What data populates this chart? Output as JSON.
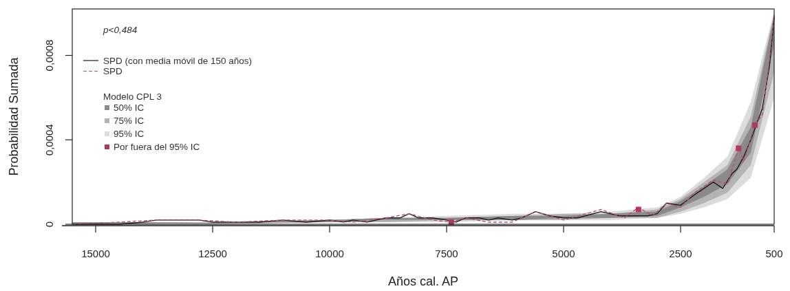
{
  "chart_data": {
    "type": "line",
    "xlabel": "Años cal. AP",
    "ylabel": "Probabilidad Sumada",
    "legend_title": "Modelo CPL 3",
    "legend": "top left",
    "annotations": [
      "p<0,484"
    ],
    "xlim": [
      15500,
      500
    ],
    "xticks": [
      15000,
      12500,
      10000,
      7500,
      5000,
      2500,
      500
    ],
    "ylim": [
      0,
      0.00102
    ],
    "yticks": [
      0,
      {
        "value": 0.0004,
        "label": "0,0004"
      },
      {
        "value": 0.0008,
        "label": "0,0008"
      }
    ],
    "series": [
      {
        "name": "SPD (con media móvil de 150 años)",
        "line_style": "solid",
        "color": "#1a1a1a",
        "x": [
          15500,
          15000,
          14500,
          14000,
          13700,
          13200,
          12800,
          12500,
          12000,
          11500,
          11000,
          10500,
          10000,
          9700,
          9500,
          9200,
          8800,
          8500,
          8300,
          8100,
          7800,
          7500,
          7300,
          7100,
          6800,
          6600,
          6400,
          6100,
          5900,
          5600,
          5300,
          5000,
          4700,
          4200,
          3800,
          3500,
          3200,
          3000,
          2800,
          2500,
          2200,
          1800,
          1600,
          1400,
          1300,
          1150,
          1000,
          900,
          750,
          600,
          500
        ],
        "values": [
          0,
          0,
          0,
          1e-05,
          2e-05,
          2e-05,
          2e-05,
          1e-05,
          1e-05,
          1e-05,
          2e-05,
          1e-05,
          2e-05,
          1e-05,
          2e-05,
          1e-05,
          3e-05,
          3e-05,
          5e-05,
          3e-05,
          3e-05,
          2e-05,
          1e-05,
          3e-05,
          3e-05,
          2e-05,
          3e-05,
          2e-05,
          3e-05,
          6e-05,
          4e-05,
          3e-05,
          3e-05,
          6e-05,
          4e-05,
          4e-05,
          4e-05,
          5e-05,
          0.0001,
          9e-05,
          0.00014,
          0.0002,
          0.00017,
          0.00024,
          0.00026,
          0.00032,
          0.0004,
          0.00046,
          0.00055,
          0.00075,
          0.00098
        ]
      },
      {
        "name": "SPD",
        "line_style": "dashed",
        "color": "#c0506a",
        "x": [
          15500,
          14500,
          13700,
          12800,
          12000,
          11000,
          10000,
          9500,
          8800,
          8300,
          7800,
          7400,
          7100,
          6600,
          6100,
          5600,
          5000,
          4200,
          3700,
          3400,
          3100,
          2800,
          2500,
          2200,
          1800,
          1500,
          1260,
          1150,
          910,
          750,
          600,
          500
        ],
        "values": [
          0,
          1e-05,
          2e-05,
          2e-05,
          1e-05,
          2e-05,
          2e-05,
          1e-05,
          3e-05,
          5e-05,
          2e-05,
          1e-05,
          3e-05,
          1e-05,
          1e-05,
          6e-05,
          2e-05,
          7e-05,
          3e-05,
          8e-05,
          4e-05,
          0.0001,
          8e-05,
          0.00015,
          0.00021,
          0.00019,
          0.00036,
          0.0003,
          0.00047,
          0.00052,
          0.00078,
          0.00099
        ]
      },
      {
        "name": "50% IC",
        "color": "#8a8a8a",
        "x": [
          15500,
          12500,
          10000,
          8800,
          7500,
          6000,
          5000,
          4000,
          3000,
          2500,
          2000,
          1500,
          1000,
          500
        ],
        "values": [
          null,
          null,
          null,
          null,
          null,
          null,
          null,
          null,
          null,
          null,
          null,
          null,
          null,
          null
        ],
        "lower": [
          0,
          1e-05,
          1e-05,
          2e-05,
          2e-05,
          2e-05,
          3e-05,
          3e-05,
          4e-05,
          8e-05,
          0.00013,
          0.00019,
          0.00034,
          0.00085
        ],
        "upper": [
          1e-05,
          1e-05,
          2e-05,
          3e-05,
          3e-05,
          4e-05,
          4e-05,
          5e-05,
          6e-05,
          0.00011,
          0.00018,
          0.00026,
          0.00046,
          0.00099
        ]
      },
      {
        "name": "75% IC",
        "color": "#b4b4b4",
        "x": [
          15500,
          12500,
          10000,
          8800,
          7500,
          6000,
          5000,
          4000,
          3000,
          2500,
          2000,
          1500,
          1000,
          500
        ],
        "values": [
          null,
          null,
          null,
          null,
          null,
          null,
          null,
          null,
          null,
          null,
          null,
          null,
          null,
          null
        ],
        "lower": [
          0,
          0,
          1e-05,
          1e-05,
          2e-05,
          2e-05,
          2e-05,
          3e-05,
          3e-05,
          6e-05,
          0.0001,
          0.00015,
          0.00028,
          0.00072
        ],
        "upper": [
          1e-05,
          1e-05,
          2e-05,
          3e-05,
          3e-05,
          4e-05,
          5e-05,
          5e-05,
          7e-05,
          0.00012,
          0.0002,
          0.00028,
          0.00051,
          0.001
        ]
      },
      {
        "name": "95% IC",
        "color": "#dcdcdc",
        "x": [
          15500,
          12500,
          10000,
          8800,
          7500,
          6000,
          5000,
          4000,
          3000,
          2500,
          2000,
          1500,
          1000,
          500
        ],
        "values": [
          null,
          null,
          null,
          null,
          null,
          null,
          null,
          null,
          null,
          null,
          null,
          null,
          null,
          null
        ],
        "lower": [
          0,
          0,
          1e-05,
          1e-05,
          1e-05,
          2e-05,
          2e-05,
          2e-05,
          3e-05,
          5e-05,
          8e-05,
          0.00012,
          0.00022,
          0.0006
        ],
        "upper": [
          1e-05,
          1e-05,
          2e-05,
          3e-05,
          4e-05,
          5e-05,
          5e-05,
          6e-05,
          8e-05,
          0.00013,
          0.00022,
          0.00032,
          0.00058,
          0.00101
        ]
      },
      {
        "name": "Por fuera del 95% IC",
        "type": "scatter",
        "marker": "square",
        "color": "#b03a5a",
        "x": [
          7400,
          3400,
          1260,
          910
        ],
        "values": [
          1e-05,
          7e-05,
          0.00036,
          0.00047
        ]
      }
    ]
  }
}
